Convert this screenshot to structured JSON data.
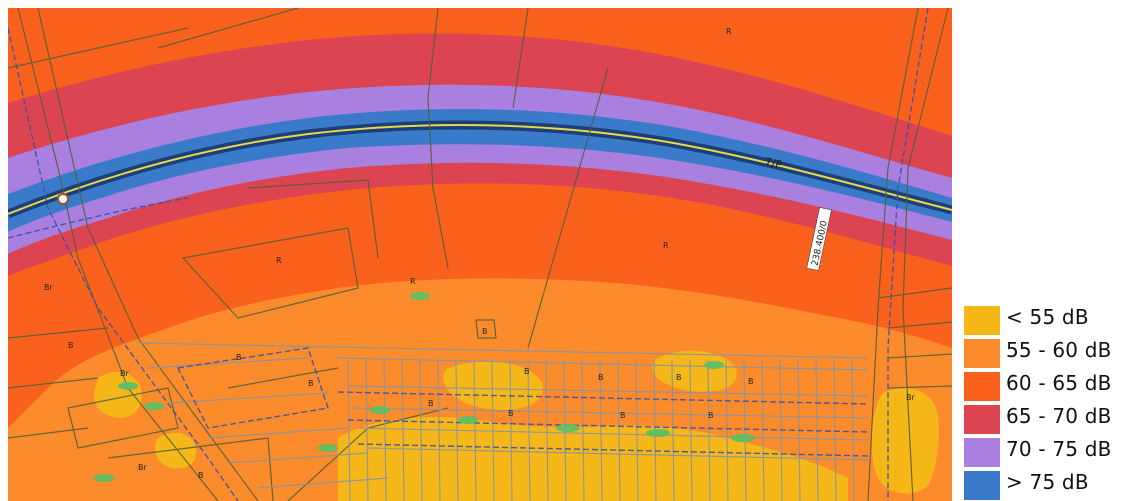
{
  "legend": {
    "items": [
      {
        "label": "< 55 dB",
        "color": "#f6b719"
      },
      {
        "label": "55 - 60 dB",
        "color": "#fc8c2b"
      },
      {
        "label": "60 - 65 dB",
        "color": "#fa611c"
      },
      {
        "label": "65 - 70 dB",
        "color": "#dd4452"
      },
      {
        "label": "70 - 75 dB",
        "color": "#a980df"
      },
      {
        "label": "> 75 dB",
        "color": "#3a7bc9"
      }
    ]
  },
  "map": {
    "road_label": "7/P",
    "chainage_label": "238.400/0",
    "parcel_labels": [
      "R",
      "R",
      "R",
      "R",
      "Br",
      "Br",
      "Br",
      "Br",
      "B",
      "B",
      "B",
      "B",
      "B",
      "B",
      "B",
      "B",
      "B",
      "B",
      "B",
      "B",
      "B"
    ]
  }
}
